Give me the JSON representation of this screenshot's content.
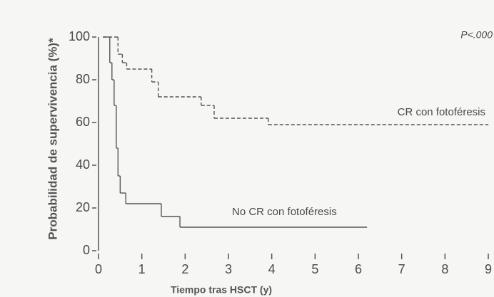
{
  "chart_data": {
    "type": "step",
    "y_label": "Probabilidad de supervivencia (%)*",
    "x_label": "Tiempo tras HSCT (y)",
    "annotation": "P<.000",
    "xlim": [
      0,
      9
    ],
    "xticks": [
      0,
      1,
      2,
      3,
      4,
      5,
      6,
      7,
      8,
      9
    ],
    "ylim": [
      0,
      100
    ],
    "yticks": [
      0,
      20,
      40,
      60,
      80,
      100
    ],
    "series": [
      {
        "name": "CR con fotoféresis",
        "color": "#555555",
        "dashed": true,
        "x": [
          0.1,
          0.45,
          0.55,
          0.65,
          1.23,
          1.38,
          2.37,
          2.67,
          3.92,
          9.0
        ],
        "values": [
          100,
          92,
          88,
          85,
          79,
          72,
          68,
          62,
          59,
          59
        ]
      },
      {
        "name": "No CR con fotoféresis",
        "color": "#555555",
        "dashed": false,
        "x": [
          0.1,
          0.26,
          0.31,
          0.36,
          0.41,
          0.45,
          0.5,
          0.63,
          1.45,
          1.88,
          6.2
        ],
        "values": [
          100,
          88,
          80,
          68,
          48,
          35,
          27,
          22,
          16,
          11,
          11
        ]
      }
    ]
  }
}
